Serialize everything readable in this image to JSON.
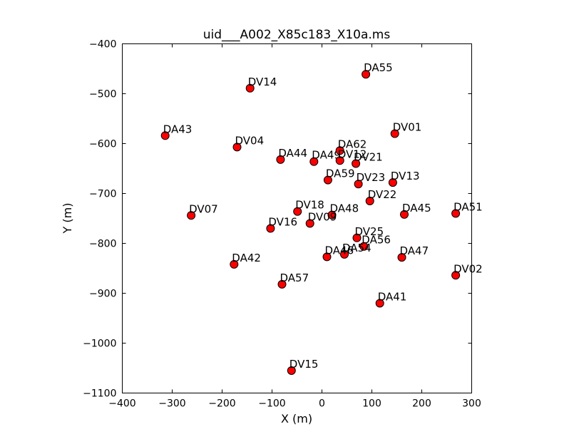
{
  "chart_data": {
    "type": "scatter",
    "title": "uid___A002_X85c183_X10a.ms",
    "xlabel": "X (m)",
    "ylabel": "Y (m)",
    "xlim": [
      -400,
      300
    ],
    "ylim": [
      -1100,
      -400
    ],
    "xticks": [
      -400,
      -300,
      -200,
      -100,
      0,
      100,
      200,
      300
    ],
    "yticks": [
      -1100,
      -1000,
      -900,
      -800,
      -700,
      -600,
      -500,
      -400
    ],
    "xtick_labels": [
      "−400",
      "−300",
      "−200",
      "−100",
      "0",
      "100",
      "200",
      "300"
    ],
    "ytick_labels": [
      "−1100",
      "−1000",
      "−900",
      "−800",
      "−700",
      "−600",
      "−500",
      "−400"
    ],
    "grid": false,
    "marker_color": "#ff0000",
    "marker_edge": "#000000",
    "points": [
      {
        "label": "DV14",
        "x": -144,
        "y": -489
      },
      {
        "label": "DA55",
        "x": 88,
        "y": -461
      },
      {
        "label": "DA43",
        "x": -314,
        "y": -584
      },
      {
        "label": "DV04",
        "x": -170,
        "y": -607
      },
      {
        "label": "DV01",
        "x": 146,
        "y": -580
      },
      {
        "label": "DA44",
        "x": -83,
        "y": -632
      },
      {
        "label": "DA49",
        "x": -16,
        "y": -636
      },
      {
        "label": "DA62",
        "x": 36,
        "y": -614
      },
      {
        "label": "DV12",
        "x": 36,
        "y": -634
      },
      {
        "label": "DV21",
        "x": 68,
        "y": -640
      },
      {
        "label": "DA59",
        "x": 12,
        "y": -673
      },
      {
        "label": "DV23",
        "x": 73,
        "y": -681
      },
      {
        "label": "DV13",
        "x": 142,
        "y": -678
      },
      {
        "label": "DV22",
        "x": 96,
        "y": -715
      },
      {
        "label": "DV07",
        "x": -262,
        "y": -744
      },
      {
        "label": "DV18",
        "x": -49,
        "y": -736
      },
      {
        "label": "DA48",
        "x": 20,
        "y": -743
      },
      {
        "label": "DA45",
        "x": 165,
        "y": -742
      },
      {
        "label": "DA51",
        "x": 268,
        "y": -740
      },
      {
        "label": "DV16",
        "x": -103,
        "y": -770
      },
      {
        "label": "DV09",
        "x": -24,
        "y": -760
      },
      {
        "label": "DV25",
        "x": 70,
        "y": -789
      },
      {
        "label": "DA56",
        "x": 84,
        "y": -806
      },
      {
        "label": "DA54",
        "x": 45,
        "y": -822
      },
      {
        "label": "DA46",
        "x": 10,
        "y": -827
      },
      {
        "label": "DA47",
        "x": 160,
        "y": -828
      },
      {
        "label": "DA42",
        "x": -176,
        "y": -842
      },
      {
        "label": "DV02",
        "x": 268,
        "y": -864
      },
      {
        "label": "DA57",
        "x": -80,
        "y": -882
      },
      {
        "label": "DA41",
        "x": 116,
        "y": -920
      },
      {
        "label": "DV15",
        "x": -61,
        "y": -1055
      }
    ]
  }
}
